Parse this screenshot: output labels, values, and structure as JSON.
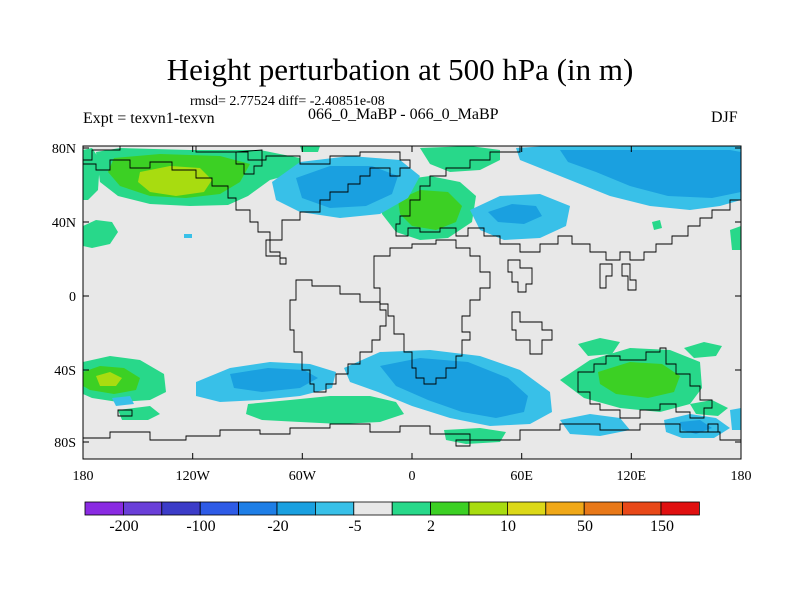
{
  "title": "Height perturbation at 500 hPa (in m)",
  "stats": "rmsd= 2.77524 diff= -2.40851e-08",
  "left_label": "Expt = texvn1-texvn",
  "center_label": "066_0_MaBP - 066_0_MaBP",
  "right_label": "DJF",
  "lon_ticks": [
    "180",
    "120W",
    "60W",
    "0",
    "60E",
    "120E",
    "180"
  ],
  "lat_ticks": [
    "80N",
    "40N",
    "0",
    "40S",
    "80S"
  ],
  "colorbar": {
    "colors": [
      "#8a2be2",
      "#6a3fd8",
      "#3c3cc8",
      "#2e5be6",
      "#1e7ee6",
      "#1aa0e0",
      "#38c0e8",
      "#e8e8e8",
      "#28d88a",
      "#3cd024",
      "#a8dc10",
      "#dcd818",
      "#f0a818",
      "#e87818",
      "#e84818",
      "#e01010"
    ],
    "labels": [
      "-200",
      "-100",
      "-20",
      "-5",
      "2",
      "10",
      "50",
      "150"
    ]
  }
}
